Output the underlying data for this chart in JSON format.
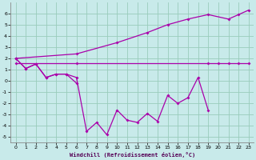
{
  "xlabel": "Windchill (Refroidissement éolien,°C)",
  "background_color": "#c8eaea",
  "grid_color": "#99ccbb",
  "line_color": "#aa00aa",
  "xlim": [
    -0.5,
    23.5
  ],
  "ylim": [
    -5.5,
    7.0
  ],
  "yticks": [
    -5,
    -4,
    -3,
    -2,
    -1,
    0,
    1,
    2,
    3,
    4,
    5,
    6
  ],
  "xticks": [
    0,
    1,
    2,
    3,
    4,
    5,
    6,
    7,
    8,
    9,
    10,
    11,
    12,
    13,
    14,
    15,
    16,
    17,
    18,
    19,
    20,
    21,
    22,
    23
  ],
  "series": [
    {
      "x": [
        0,
        1,
        2,
        3,
        4,
        5,
        6,
        7,
        8,
        9,
        10,
        11,
        12,
        13,
        14,
        15,
        16,
        17,
        18,
        19
      ],
      "y": [
        2.0,
        1.1,
        1.5,
        0.3,
        0.6,
        0.6,
        0.3,
        -4.5,
        -3.7,
        -4.8,
        -2.6,
        -3.5,
        -3.7,
        -2.9,
        -3.6,
        -1.3,
        -2.0,
        -1.5,
        0.3,
        -2.6
      ]
    },
    {
      "x": [
        0,
        1,
        2,
        3,
        4,
        5,
        6
      ],
      "y": [
        2.0,
        1.1,
        1.5,
        0.3,
        0.6,
        0.6,
        -0.2
      ]
    },
    {
      "x": [
        0,
        6,
        10,
        13,
        15,
        17,
        19,
        21,
        22,
        23
      ],
      "y": [
        2.0,
        2.4,
        3.4,
        4.3,
        5.0,
        5.5,
        5.9,
        5.5,
        5.9,
        6.3
      ]
    },
    {
      "x": [
        0,
        6,
        19,
        20,
        21,
        22,
        23
      ],
      "y": [
        1.6,
        1.6,
        1.6,
        1.6,
        1.6,
        1.6,
        1.6
      ]
    }
  ]
}
